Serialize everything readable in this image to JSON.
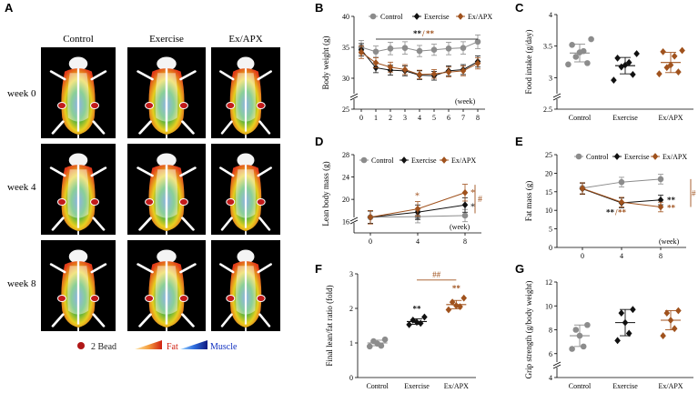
{
  "panel_a": {
    "label": "A",
    "columns": [
      "Control",
      "Exercise",
      "Ex/APX"
    ],
    "rows": [
      "week 0",
      "week 4",
      "week 8"
    ],
    "legend": {
      "bead": "2 Bead",
      "fat": "Fat",
      "muscle": "Muscle"
    }
  },
  "colors": {
    "control": "#8c8c8c",
    "exercise": "#111111",
    "exapx": "#a0521d"
  },
  "chart_data": [
    {
      "id": "B",
      "type": "line",
      "title": "",
      "ylabel": "Body weight  (g)",
      "xlabel": "(week)",
      "x": [
        0,
        1,
        2,
        3,
        4,
        5,
        6,
        7,
        8
      ],
      "ylim": [
        25,
        40
      ],
      "yticks": [
        25,
        30,
        35,
        40
      ],
      "axis_break": true,
      "series": [
        {
          "name": "Control",
          "values": [
            35.0,
            34.3,
            34.8,
            34.9,
            34.4,
            34.6,
            34.8,
            34.9,
            35.9
          ],
          "err": [
            1.1,
            0.9,
            1.0,
            1.0,
            0.9,
            0.9,
            1.0,
            1.0,
            1.1
          ]
        },
        {
          "name": "Exercise",
          "values": [
            34.6,
            31.7,
            31.3,
            31.2,
            30.5,
            30.4,
            31.2,
            31.4,
            32.7
          ],
          "err": [
            1.0,
            0.8,
            0.8,
            0.8,
            0.7,
            0.7,
            0.8,
            0.8,
            0.9
          ]
        },
        {
          "name": "Ex/APX",
          "values": [
            34.2,
            32.5,
            31.8,
            31.4,
            30.6,
            30.7,
            31.0,
            31.2,
            32.4
          ],
          "err": [
            1.0,
            0.8,
            0.8,
            0.8,
            0.7,
            0.7,
            0.8,
            0.8,
            0.9
          ]
        }
      ],
      "annotations": {
        "sig_black": "**",
        "slash": "/",
        "sig_brown": "**"
      }
    },
    {
      "id": "C",
      "type": "scatter",
      "title": "",
      "ylabel": "Food intake  (g/day)",
      "xlabel": "",
      "categories": [
        "Control",
        "Exercise",
        "Ex/APX"
      ],
      "ylim": [
        2.5,
        4.0
      ],
      "yticks": [
        2.5,
        3.0,
        3.5,
        4.0
      ],
      "axis_break": true,
      "series": [
        {
          "name": "Control",
          "points": [
            3.61,
            3.52,
            3.42,
            3.4,
            3.33,
            3.23,
            3.21
          ],
          "mean": 3.39,
          "sd": 0.14
        },
        {
          "name": "Exercise",
          "points": [
            3.38,
            3.31,
            3.24,
            3.2,
            3.17,
            3.05,
            2.96
          ],
          "mean": 3.19,
          "sd": 0.13
        },
        {
          "name": "Ex/APX",
          "points": [
            3.43,
            3.41,
            3.34,
            3.2,
            3.16,
            3.09,
            3.06
          ],
          "mean": 3.24,
          "sd": 0.16
        }
      ]
    },
    {
      "id": "D",
      "type": "line",
      "title": "",
      "ylabel": "Lean body mass  (g)",
      "xlabel": "(week)",
      "x": [
        0,
        4,
        8
      ],
      "ylim": [
        14,
        28
      ],
      "yticks": [
        16,
        20,
        24,
        28
      ],
      "axis_break": true,
      "series": [
        {
          "name": "Control",
          "values": [
            16.8,
            16.9,
            17.1
          ],
          "err": [
            1.1,
            1.1,
            1.1
          ]
        },
        {
          "name": "Exercise",
          "values": [
            16.8,
            17.7,
            19.0
          ],
          "err": [
            1.1,
            1.3,
            1.3
          ]
        },
        {
          "name": "Ex/APX",
          "values": [
            16.8,
            18.3,
            21.2
          ],
          "err": [
            1.2,
            1.3,
            1.5
          ]
        }
      ],
      "annotations": {
        "star4": "*",
        "star8_brown": "*",
        "star8_black": "*",
        "hash": "#"
      }
    },
    {
      "id": "E",
      "type": "line",
      "title": "",
      "ylabel": "Fat mass  (g)",
      "xlabel": "(week)",
      "x": [
        0,
        4,
        8
      ],
      "ylim": [
        0,
        25
      ],
      "yticks": [
        0,
        5,
        10,
        15,
        20,
        25
      ],
      "axis_break": false,
      "series": [
        {
          "name": "Control",
          "values": [
            16.0,
            17.6,
            18.4
          ],
          "err": [
            1.5,
            1.3,
            1.3
          ]
        },
        {
          "name": "Exercise",
          "values": [
            15.8,
            12.0,
            12.8
          ],
          "err": [
            1.5,
            1.3,
            1.3
          ]
        },
        {
          "name": "Ex/APX",
          "values": [
            15.9,
            12.2,
            10.9
          ],
          "err": [
            1.5,
            1.3,
            1.3
          ]
        }
      ],
      "annotations": {
        "sig_black": "**",
        "slash": "/",
        "sig_brown": "**",
        "hash": "#"
      }
    },
    {
      "id": "F",
      "type": "scatter",
      "title": "",
      "ylabel": "Final  lean/fat  ratio  (fold)",
      "xlabel": "",
      "categories": [
        "Control",
        "Exercise",
        "Ex/APX"
      ],
      "ylim": [
        0,
        3
      ],
      "yticks": [
        0,
        1,
        2,
        3
      ],
      "axis_break": false,
      "series": [
        {
          "name": "Control",
          "points": [
            1.1,
            1.05,
            0.98,
            0.92,
            0.9
          ],
          "mean": 1.0,
          "sd": 0.08
        },
        {
          "name": "Exercise",
          "points": [
            1.75,
            1.66,
            1.6,
            1.57,
            1.53
          ],
          "mean": 1.62,
          "sd": 0.08
        },
        {
          "name": "Ex/APX",
          "points": [
            2.3,
            2.18,
            2.08,
            2.05,
            1.96
          ],
          "mean": 2.11,
          "sd": 0.12
        }
      ],
      "annotations": {
        "sig_exercise": "**",
        "sig_exapx": "**",
        "hash": "##"
      }
    },
    {
      "id": "G",
      "type": "scatter",
      "title": "",
      "ylabel": "Grip  strength  (g/body weight)",
      "xlabel": "",
      "categories": [
        "Control",
        "Exercise",
        "Ex/APX"
      ],
      "ylim": [
        4,
        12
      ],
      "yticks": [
        4,
        6,
        8,
        10,
        12
      ],
      "axis_break": true,
      "series": [
        {
          "name": "Control",
          "points": [
            8.4,
            8.0,
            7.5,
            6.6,
            6.4
          ],
          "mean": 7.5,
          "sd": 0.9
        },
        {
          "name": "Exercise",
          "points": [
            9.7,
            9.4,
            8.6,
            7.7,
            7.1
          ],
          "mean": 8.6,
          "sd": 1.1
        },
        {
          "name": "Ex/APX",
          "points": [
            9.6,
            9.4,
            8.8,
            8.1,
            7.5
          ],
          "mean": 8.8,
          "sd": 0.8
        }
      ]
    }
  ]
}
